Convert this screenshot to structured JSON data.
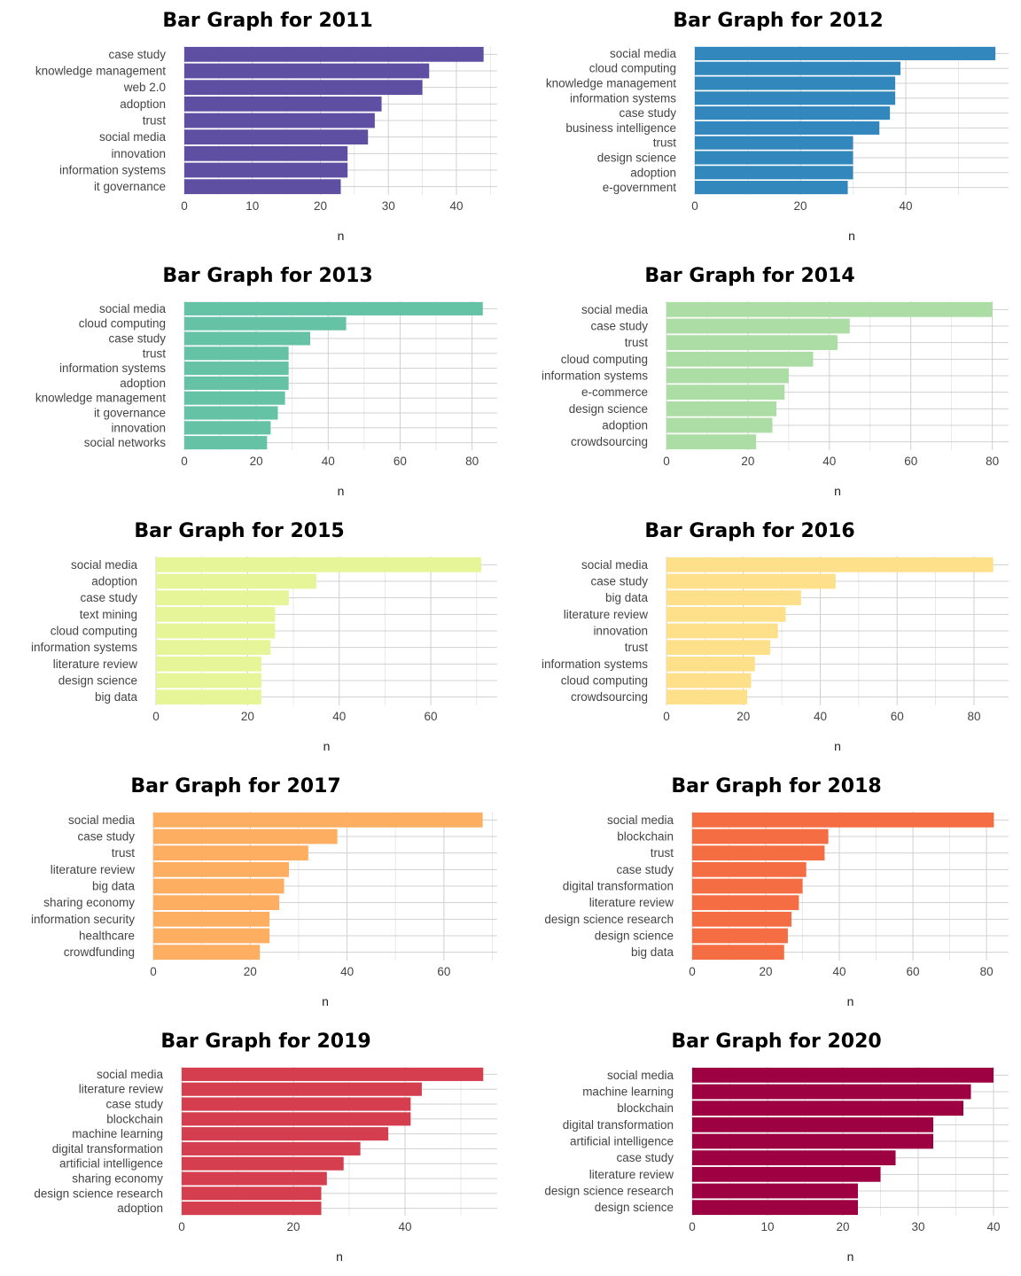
{
  "chart_data": [
    {
      "type": "bar",
      "orientation": "horizontal",
      "title": "Bar Graph for  2011",
      "xlabel": "n",
      "color": "#5E4FA2",
      "xlim": [
        0,
        46
      ],
      "xticks": [
        0,
        10,
        20,
        30,
        40
      ],
      "categories": [
        "case study",
        "knowledge management",
        "web 2.0",
        "adoption",
        "trust",
        "social media",
        "innovation",
        "information systems",
        "it governance"
      ],
      "values": [
        44,
        36,
        35,
        29,
        28,
        27,
        24,
        24,
        23
      ]
    },
    {
      "type": "bar",
      "orientation": "horizontal",
      "title": "Bar Graph for  2012",
      "xlabel": "n",
      "color": "#3288BD",
      "xlim": [
        0,
        59.5
      ],
      "xticks": [
        0,
        20,
        40
      ],
      "categories": [
        "social media",
        "cloud computing",
        "knowledge management",
        "information systems",
        "case study",
        "business intelligence",
        "trust",
        "design science",
        "adoption",
        "e-government"
      ],
      "values": [
        57,
        39,
        38,
        38,
        37,
        35,
        30,
        30,
        30,
        29
      ]
    },
    {
      "type": "bar",
      "orientation": "horizontal",
      "title": "Bar Graph for  2013",
      "xlabel": "n",
      "color": "#66C2A5",
      "xlim": [
        0,
        87
      ],
      "xticks": [
        0,
        20,
        40,
        60,
        80
      ],
      "categories": [
        "social media",
        "cloud computing",
        "case study",
        "trust",
        "information systems",
        "adoption",
        "knowledge management",
        "it governance",
        "innovation",
        "social networks"
      ],
      "values": [
        83,
        45,
        35,
        29,
        29,
        29,
        28,
        26,
        24,
        23
      ]
    },
    {
      "type": "bar",
      "orientation": "horizontal",
      "title": "Bar Graph for  2014",
      "xlabel": "n",
      "color": "#ABDDA4",
      "xlim": [
        0,
        84
      ],
      "xticks": [
        0,
        20,
        40,
        60,
        80
      ],
      "categories": [
        "social media",
        "case study",
        "trust",
        "cloud computing",
        "information systems",
        "e-commerce",
        "design science",
        "adoption",
        "crowdsourcing"
      ],
      "values": [
        80,
        45,
        42,
        36,
        30,
        29,
        27,
        26,
        22
      ]
    },
    {
      "type": "bar",
      "orientation": "horizontal",
      "title": "Bar Graph for  2015",
      "xlabel": "n",
      "color": "#E6F598",
      "xlim": [
        0,
        74.5
      ],
      "xticks": [
        0,
        20,
        40,
        60
      ],
      "categories": [
        "social media",
        "adoption",
        "case study",
        "text mining",
        "cloud computing",
        "information systems",
        "literature review",
        "design science",
        "big data"
      ],
      "values": [
        71,
        35,
        29,
        26,
        26,
        25,
        23,
        23,
        23
      ]
    },
    {
      "type": "bar",
      "orientation": "horizontal",
      "title": "Bar Graph for  2016",
      "xlabel": "n",
      "color": "#FEE08B",
      "xlim": [
        0,
        89
      ],
      "xticks": [
        0,
        20,
        40,
        60,
        80
      ],
      "categories": [
        "social media",
        "case study",
        "big data",
        "literature review",
        "innovation",
        "trust",
        "information systems",
        "cloud computing",
        "crowdsourcing"
      ],
      "values": [
        85,
        44,
        35,
        31,
        29,
        27,
        23,
        22,
        21
      ]
    },
    {
      "type": "bar",
      "orientation": "horizontal",
      "title": "Bar Graph for  2017",
      "xlabel": "n",
      "color": "#FDAE61",
      "xlim": [
        0,
        71
      ],
      "xticks": [
        0,
        20,
        40,
        60
      ],
      "categories": [
        "social media",
        "case study",
        "trust",
        "literature review",
        "big data",
        "sharing economy",
        "information security",
        "healthcare",
        "crowdfunding"
      ],
      "values": [
        68,
        38,
        32,
        28,
        27,
        26,
        24,
        24,
        22
      ]
    },
    {
      "type": "bar",
      "orientation": "horizontal",
      "title": "Bar Graph for  2018",
      "xlabel": "n",
      "color": "#F46D43",
      "xlim": [
        0,
        86
      ],
      "xticks": [
        0,
        20,
        40,
        60,
        80
      ],
      "categories": [
        "social media",
        "blockchain",
        "trust",
        "case study",
        "digital transformation",
        "literature review",
        "design science research",
        "design science",
        "big data"
      ],
      "values": [
        82,
        37,
        36,
        31,
        30,
        29,
        27,
        26,
        25
      ]
    },
    {
      "type": "bar",
      "orientation": "horizontal",
      "title": "Bar Graph for  2019",
      "xlabel": "n",
      "color": "#D53E4F",
      "xlim": [
        0,
        56.5
      ],
      "xticks": [
        0,
        20,
        40
      ],
      "categories": [
        "social media",
        "literature review",
        "case study",
        "blockchain",
        "machine learning",
        "digital transformation",
        "artificial intelligence",
        "sharing economy",
        "design science research",
        "adoption"
      ],
      "values": [
        54,
        43,
        41,
        41,
        37,
        32,
        29,
        26,
        25,
        25
      ]
    },
    {
      "type": "bar",
      "orientation": "horizontal",
      "title": "Bar Graph for  2020",
      "xlabel": "n",
      "color": "#9E0142",
      "xlim": [
        0,
        42
      ],
      "xticks": [
        0,
        10,
        20,
        30,
        40
      ],
      "categories": [
        "social media",
        "machine learning",
        "blockchain",
        "digital transformation",
        "artificial intelligence",
        "case study",
        "literature review",
        "design science research",
        "design science"
      ],
      "values": [
        40,
        37,
        36,
        32,
        32,
        27,
        25,
        22,
        22
      ]
    }
  ]
}
